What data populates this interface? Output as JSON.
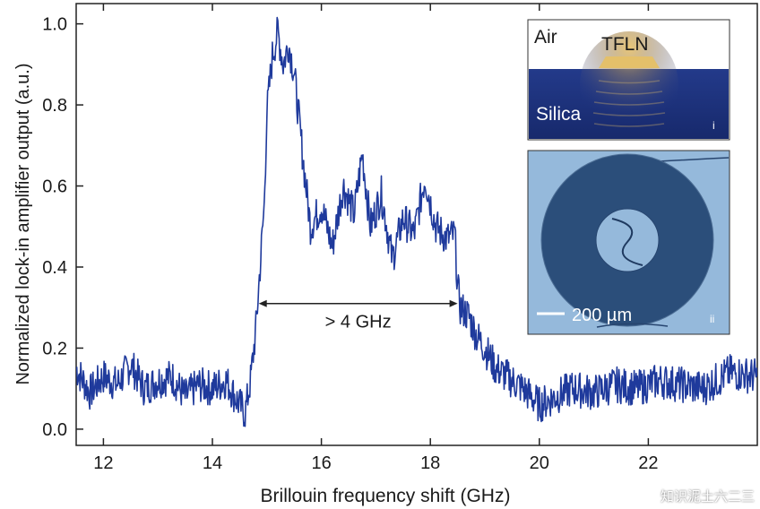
{
  "chart_data": {
    "type": "line",
    "xlabel": "Brillouin frequency shift (GHz)",
    "ylabel": "Normalized lock-in amplifier output (a.u.)",
    "xlim": [
      11.5,
      24
    ],
    "ylim": [
      -0.04,
      1.05
    ],
    "xticks": [
      12,
      14,
      16,
      18,
      20,
      22
    ],
    "yticks": [
      0.0,
      0.2,
      0.4,
      0.6,
      0.8,
      1.0
    ],
    "ytick_labels": [
      "0.0",
      "0.2",
      "0.4",
      "0.6",
      "0.8",
      "1.0"
    ],
    "grid": false,
    "series": [
      {
        "color": "#1f3a9c",
        "x": [
          11.5,
          11.75,
          12.0,
          12.25,
          12.5,
          12.75,
          13.0,
          13.25,
          13.5,
          13.75,
          14.0,
          14.25,
          14.5,
          14.6,
          14.7,
          14.8,
          14.85,
          14.95,
          15.0,
          15.1,
          15.2,
          15.3,
          15.4,
          15.5,
          15.6,
          15.7,
          15.8,
          16.0,
          16.2,
          16.4,
          16.6,
          16.75,
          16.9,
          17.1,
          17.3,
          17.5,
          17.7,
          17.9,
          18.1,
          18.3,
          18.45,
          18.5,
          18.55,
          18.7,
          18.85,
          19.0,
          19.2,
          19.4,
          19.7,
          20.0,
          20.3,
          20.6,
          21.0,
          21.4,
          21.8,
          22.2,
          22.6,
          23.0,
          23.5,
          24.0
        ],
        "y": [
          0.15,
          0.09,
          0.13,
          0.11,
          0.16,
          0.1,
          0.12,
          0.13,
          0.08,
          0.11,
          0.1,
          0.12,
          0.06,
          0.04,
          0.12,
          0.25,
          0.35,
          0.55,
          0.78,
          0.92,
          0.98,
          0.9,
          0.95,
          0.88,
          0.75,
          0.62,
          0.5,
          0.55,
          0.45,
          0.6,
          0.53,
          0.68,
          0.5,
          0.58,
          0.42,
          0.52,
          0.48,
          0.62,
          0.5,
          0.47,
          0.48,
          0.35,
          0.3,
          0.28,
          0.23,
          0.2,
          0.15,
          0.13,
          0.1,
          0.06,
          0.08,
          0.1,
          0.09,
          0.11,
          0.1,
          0.12,
          0.11,
          0.1,
          0.14,
          0.13
        ]
      }
    ],
    "annotation": {
      "text": "> 4 GHz",
      "x_start": 14.85,
      "x_end": 18.5,
      "y": 0.31
    }
  },
  "inset_top": {
    "label_air": "Air",
    "label_tfln": "TFLN",
    "label_silica": "Silica",
    "panel_label": "i"
  },
  "inset_bottom": {
    "scale_label": "200 µm",
    "panel_label": "ii"
  },
  "watermark": "知识泥土六二三"
}
